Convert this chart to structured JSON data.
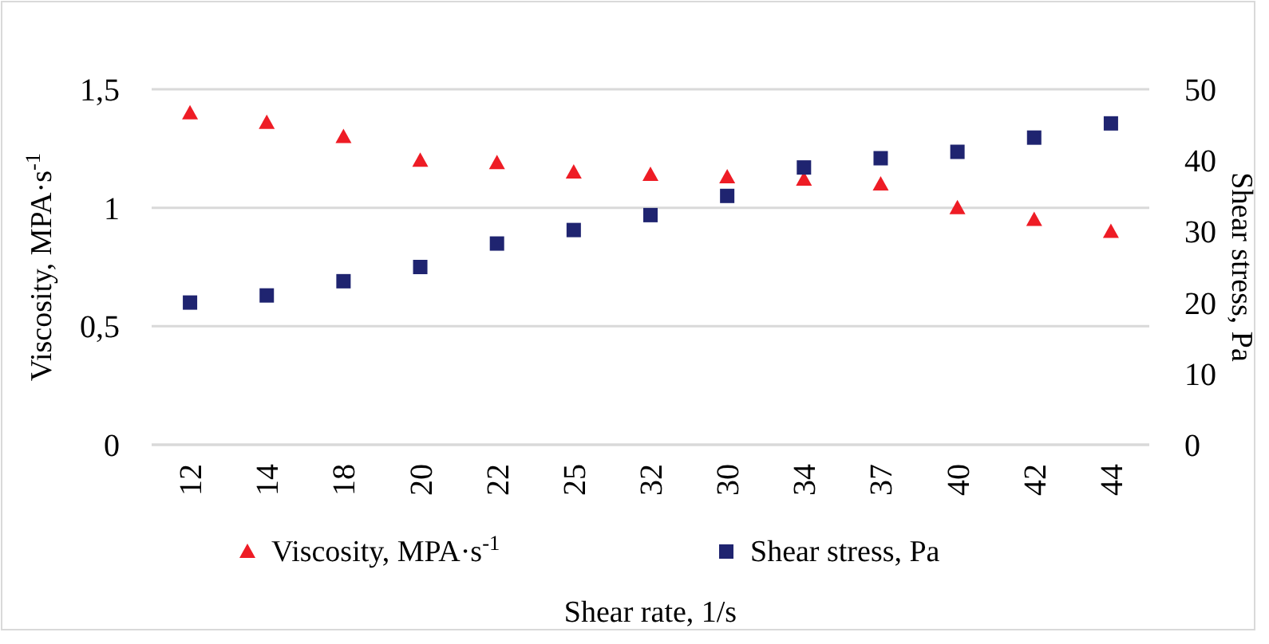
{
  "chart_data": {
    "type": "scatter",
    "xlabel": "Shear rate, 1/s",
    "ylabel": "Viscosity, MPA·s$^{-1}$",
    "y2label": "Shear stress, Pa",
    "categories": [
      "12",
      "14",
      "18",
      "20",
      "22",
      "25",
      "32",
      "30",
      "34",
      "37",
      "40",
      "42",
      "44"
    ],
    "series": [
      {
        "name": "Viscosity, MPA·s$^{-1}$",
        "color": "#ee1c25",
        "marker": "triangle",
        "values": [
          1.4,
          1.36,
          1.3,
          1.2,
          1.19,
          1.15,
          1.14,
          1.13,
          1.12,
          1.1,
          1.0,
          0.95,
          0.9
        ]
      },
      {
        "name": "Shear stress, Pa",
        "color": "#1f2470",
        "marker": "square",
        "axis": "y2",
        "values": [
          20,
          21,
          23,
          25,
          28.3,
          30.2,
          32.3,
          35,
          39,
          40.3,
          41.2,
          43.2,
          45.2
        ]
      }
    ],
    "ylim": [
      0,
      1.5
    ],
    "yticks": [
      {
        "value": 0,
        "label": "0"
      },
      {
        "value": 0.5,
        "label": "0,5"
      },
      {
        "value": 1,
        "label": "1"
      },
      {
        "value": 1.5,
        "label": "1,5"
      }
    ],
    "y2lim": [
      0,
      50
    ],
    "y2ticks": [
      0,
      10,
      20,
      30,
      40,
      50
    ],
    "grid": "y",
    "legend": "bottom"
  }
}
